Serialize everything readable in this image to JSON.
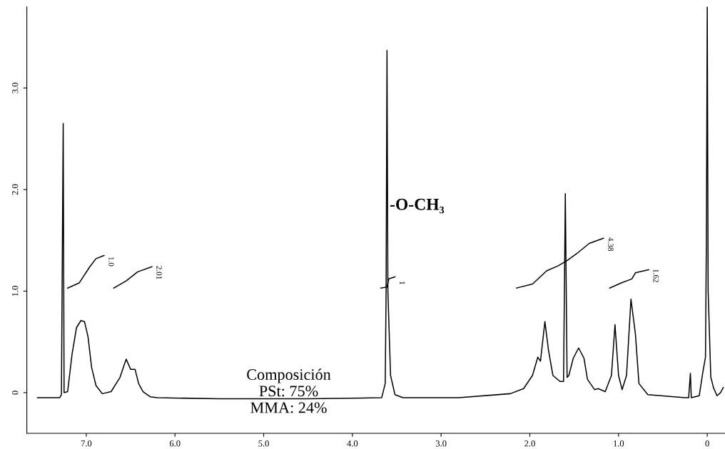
{
  "chart_data": {
    "type": "line",
    "xlim": [
      7.67,
      -0.2
    ],
    "ylim": [
      -0.4,
      3.8
    ],
    "xticks": [
      {
        "value": 7,
        "label": "7.0"
      },
      {
        "value": 6,
        "label": "6.0"
      },
      {
        "value": 5,
        "label": "5.0"
      },
      {
        "value": 4,
        "label": "4.0"
      },
      {
        "value": 3,
        "label": "3.0"
      },
      {
        "value": 2,
        "label": "2.0"
      },
      {
        "value": 1,
        "label": "1.0"
      },
      0
    ],
    "yticks": [
      0,
      {
        "value": 1,
        "label": "1.0"
      },
      {
        "value": 2,
        "label": "2.0"
      },
      {
        "value": 3,
        "label": "3.0"
      }
    ],
    "grid": false,
    "legend": false,
    "series": [
      {
        "color": "#000000",
        "x": [
          7.55,
          7.3,
          7.28,
          7.26,
          7.25,
          7.21,
          7.16,
          7.11,
          7.06,
          7.02,
          6.98,
          6.94,
          6.89,
          6.82,
          6.72,
          6.62,
          6.55,
          6.5,
          6.45,
          6.41,
          6.36,
          6.28,
          6.2,
          5.5,
          4.5,
          3.67,
          3.63,
          3.62,
          3.61,
          3.6,
          3.57,
          3.52,
          3.43,
          2.8,
          2.22,
          2.07,
          1.97,
          1.91,
          1.88,
          1.83,
          1.79,
          1.74,
          1.66,
          1.62,
          1.6,
          1.58,
          1.56,
          1.51,
          1.45,
          1.39,
          1.35,
          1.27,
          1.23,
          1.15,
          1.08,
          1.04,
          1.0,
          0.96,
          0.91,
          0.86,
          0.81,
          0.77,
          0.67,
          0.25,
          0.21,
          0.19,
          0.18,
          0.09,
          0.05,
          0.02,
          0.01,
          0.0,
          -0.01,
          -0.04,
          -0.05,
          -0.07,
          -0.11,
          -0.15,
          -0.18
        ],
        "values": [
          -0.05,
          -0.05,
          -0.02,
          2.65,
          0.0,
          0.01,
          0.38,
          0.64,
          0.71,
          0.7,
          0.55,
          0.25,
          0.07,
          -0.01,
          0.01,
          0.15,
          0.33,
          0.23,
          0.23,
          0.09,
          0.01,
          -0.04,
          -0.05,
          -0.06,
          -0.06,
          -0.05,
          0.09,
          1.0,
          3.37,
          1.0,
          0.17,
          -0.02,
          -0.05,
          -0.05,
          -0.01,
          0.04,
          0.17,
          0.35,
          0.31,
          0.7,
          0.42,
          0.17,
          0.11,
          0.11,
          1.96,
          0.15,
          0.17,
          0.34,
          0.44,
          0.34,
          0.13,
          0.03,
          0.04,
          0.01,
          0.17,
          0.67,
          0.17,
          0.03,
          0.17,
          0.92,
          0.58,
          0.09,
          -0.02,
          -0.05,
          -0.05,
          0.19,
          -0.05,
          -0.03,
          0.2,
          0.35,
          1.5,
          3.8,
          1.0,
          0.15,
          0.12,
          0.05,
          -0.03,
          0.0,
          0.05
        ]
      },
      {
        "color": "#000000",
        "x": [
          7.21,
          7.08,
          6.96,
          6.89,
          6.8
        ],
        "values": [
          1.03,
          1.08,
          1.24,
          1.32,
          1.35
        ]
      },
      {
        "color": "#000000",
        "x": [
          6.69,
          6.55,
          6.42,
          6.26
        ],
        "values": [
          1.03,
          1.1,
          1.19,
          1.24
        ]
      },
      {
        "color": "#000000",
        "x": [
          3.68,
          3.61,
          3.59,
          3.52
        ],
        "values": [
          1.03,
          1.04,
          1.12,
          1.14
        ]
      },
      {
        "color": "#000000",
        "x": [
          2.15,
          1.97,
          1.81,
          1.68,
          1.58,
          1.47,
          1.33,
          1.17
        ],
        "values": [
          1.03,
          1.07,
          1.2,
          1.25,
          1.3,
          1.37,
          1.47,
          1.52
        ]
      },
      {
        "color": "#000000",
        "x": [
          1.1,
          0.97,
          0.85,
          0.81,
          0.66
        ],
        "values": [
          1.03,
          1.08,
          1.12,
          1.18,
          1.21
        ]
      }
    ],
    "annotations": [
      {
        "text": "1.0",
        "x": 6.8,
        "y": 1.35
      },
      {
        "text": "2.01",
        "x": 6.26,
        "y": 1.24
      },
      {
        "text": "1",
        "x": 3.52,
        "y": 1.14
      },
      {
        "text": "4.38",
        "x": 1.17,
        "y": 1.52
      },
      {
        "text": "1.62",
        "x": 0.66,
        "y": 1.21
      },
      {
        "text": "-O-CH₃",
        "x": 3.58,
        "y": 1.84
      },
      "Composición\nPSt: 75%\nMMA: 24%"
    ]
  }
}
